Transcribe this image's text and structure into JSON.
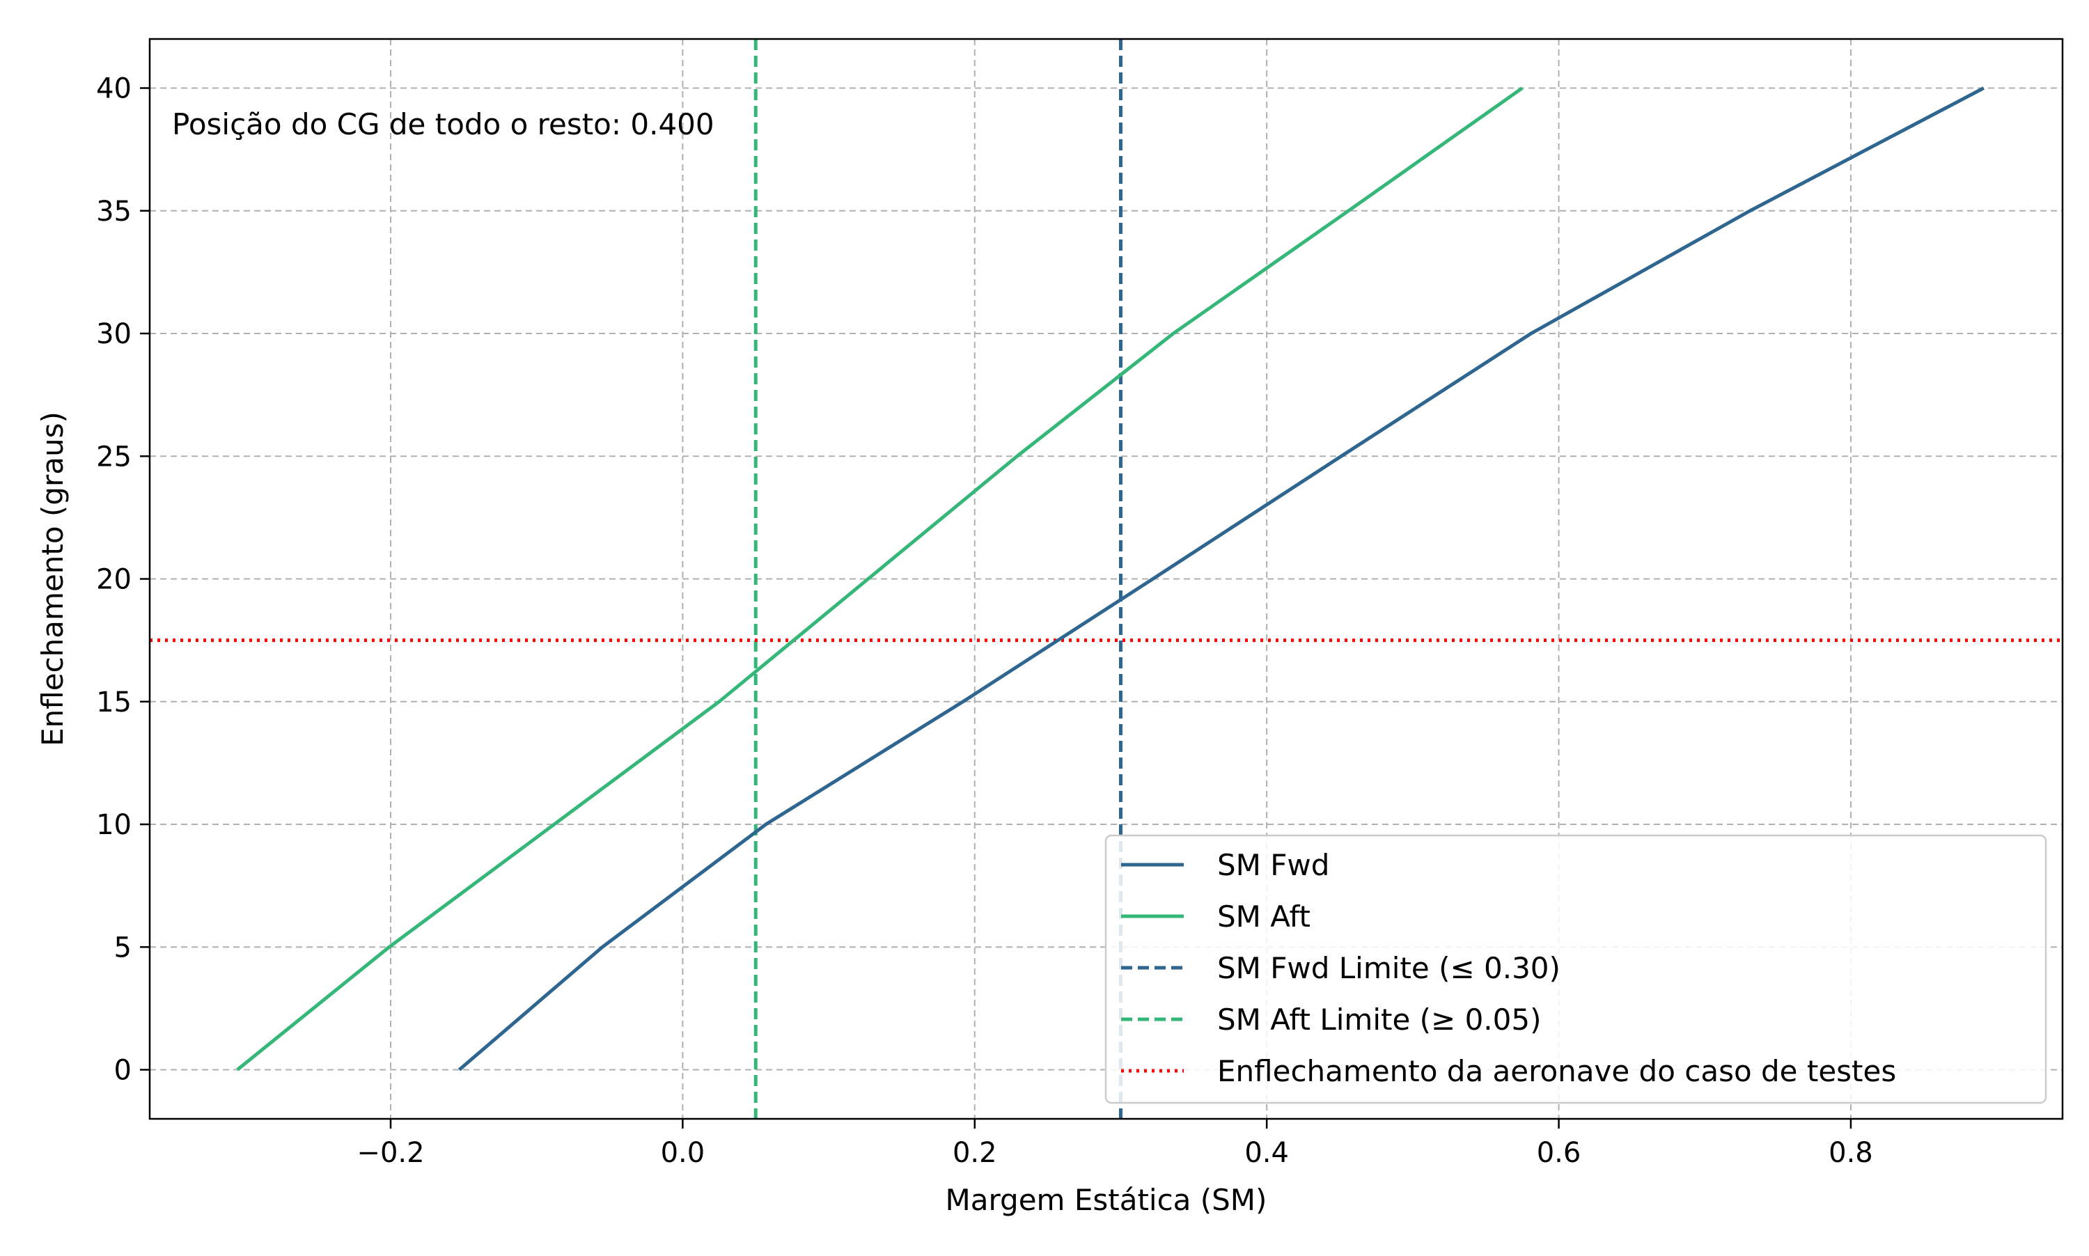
{
  "chart_data": {
    "type": "line",
    "xlabel": "Margem Estática (SM)",
    "ylabel": "Enflechamento (graus)",
    "xlim": [
      -0.365,
      0.945
    ],
    "ylim": [
      -2,
      42
    ],
    "grid": true,
    "legend_position": "lower-right",
    "x_ticks": [
      -0.2,
      0.0,
      0.2,
      0.4,
      0.6,
      0.8
    ],
    "x_tick_labels": [
      "−0.2",
      "0.0",
      "0.2",
      "0.4",
      "0.6",
      "0.8"
    ],
    "y_ticks": [
      0,
      5,
      10,
      15,
      20,
      25,
      30,
      35,
      40
    ],
    "y_tick_labels": [
      "0",
      "5",
      "10",
      "15",
      "20",
      "25",
      "30",
      "35",
      "40"
    ],
    "annotation": "Posição do CG de todo o resto: 0.400",
    "series": [
      {
        "name": "SM Fwd",
        "color": "#2f6690",
        "style": "solid",
        "points": [
          [
            -0.153,
            0
          ],
          [
            -0.055,
            5
          ],
          [
            0.057,
            10
          ],
          [
            0.192,
            15
          ],
          [
            0.322,
            20
          ],
          [
            0.451,
            25
          ],
          [
            0.581,
            30
          ],
          [
            0.731,
            35
          ],
          [
            0.891,
            40
          ]
        ]
      },
      {
        "name": "SM Aft",
        "color": "#35b779",
        "style": "solid",
        "points": [
          [
            -0.305,
            0
          ],
          [
            -0.201,
            5
          ],
          [
            -0.088,
            10
          ],
          [
            0.025,
            15
          ],
          [
            0.127,
            20
          ],
          [
            0.229,
            25
          ],
          [
            0.336,
            30
          ],
          [
            0.456,
            35
          ],
          [
            0.575,
            40
          ]
        ]
      }
    ],
    "reference_lines": [
      {
        "name": "SM Fwd Limite ($\\leq 0.30$)",
        "label": "SM Fwd Limite (≤ 0.30)",
        "orientation": "vertical",
        "value": 0.3,
        "color": "#2f6690",
        "style": "dashed"
      },
      {
        "name": "SM Aft Limite ($\\geq 0.05$)",
        "label": "SM Aft Limite (≥ 0.05)",
        "orientation": "vertical",
        "value": 0.05,
        "color": "#35b779",
        "style": "dashed"
      },
      {
        "name": "Enflechamento da aeronave do caso de testes",
        "label": "Enflechamento da aeronave do caso de testes",
        "orientation": "horizontal",
        "value": 17.5,
        "color": "#ff0000",
        "style": "dotted"
      }
    ]
  }
}
